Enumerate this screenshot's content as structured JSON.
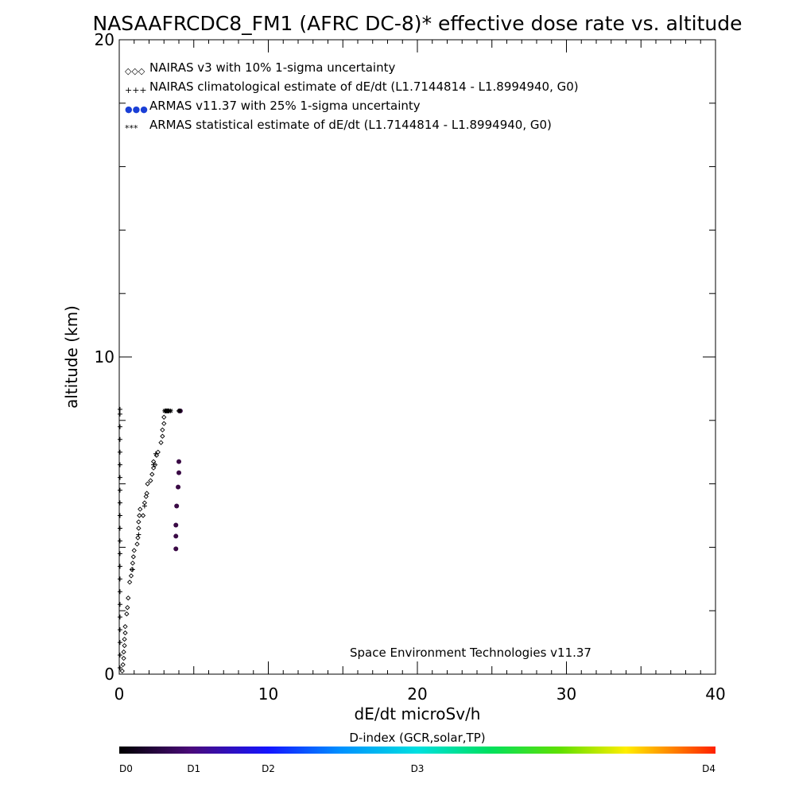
{
  "chart_data": {
    "type": "scatter",
    "title": "NASAAFRCDC8_FM1 (AFRC DC-8)* effective dose rate vs. altitude",
    "xlabel": "dE/dt microSv/h",
    "ylabel": "altitude (km)",
    "xlim": [
      0,
      40
    ],
    "ylim": [
      0,
      20
    ],
    "x_ticks": [
      "0",
      "10",
      "20",
      "30",
      "40"
    ],
    "y_ticks": [
      "0",
      "10",
      "20"
    ],
    "legend_position": "top-left",
    "annotation": "Space Environment Technologies v11.37",
    "legend": [
      {
        "symbol": "◇◇◇",
        "label": "NAIRAS v3 with 10% 1-sigma uncertainty",
        "color": "#000000"
      },
      {
        "symbol": "+++",
        "label": "NAIRAS climatological estimate of dE/dt (L1.7144814 - L1.8994940, G0)",
        "color": "#000000"
      },
      {
        "symbol": "●●●",
        "label": "ARMAS v11.37 with 25% 1-sigma uncertainty",
        "color": "#1a3fd6"
      },
      {
        "symbol": "***",
        "label": "ARMAS statistical estimate of dE/dt (L1.7144814 - L1.8994940, G0)",
        "color": "#000000"
      }
    ],
    "series": [
      {
        "name": "NAIRAS v3 with 10% 1-sigma uncertainty",
        "marker": "diamond",
        "color": "#000000",
        "points": [
          [
            0.2,
            0.1
          ],
          [
            0.25,
            0.3
          ],
          [
            0.3,
            0.5
          ],
          [
            0.3,
            0.7
          ],
          [
            0.35,
            0.9
          ],
          [
            0.35,
            1.1
          ],
          [
            0.4,
            1.3
          ],
          [
            0.4,
            1.5
          ],
          [
            0.5,
            1.9
          ],
          [
            0.55,
            2.1
          ],
          [
            0.6,
            2.4
          ],
          [
            0.7,
            2.9
          ],
          [
            0.8,
            3.1
          ],
          [
            0.85,
            3.3
          ],
          [
            0.9,
            3.5
          ],
          [
            0.95,
            3.7
          ],
          [
            1.0,
            3.9
          ],
          [
            1.2,
            4.1
          ],
          [
            1.25,
            4.3
          ],
          [
            1.3,
            4.6
          ],
          [
            1.3,
            4.8
          ],
          [
            1.35,
            5.0
          ],
          [
            1.4,
            5.2
          ],
          [
            1.6,
            5.0
          ],
          [
            1.7,
            5.4
          ],
          [
            1.8,
            5.6
          ],
          [
            1.85,
            5.7
          ],
          [
            1.9,
            6.0
          ],
          [
            2.1,
            6.1
          ],
          [
            2.2,
            6.3
          ],
          [
            2.3,
            6.5
          ],
          [
            2.3,
            6.7
          ],
          [
            2.4,
            6.6
          ],
          [
            2.5,
            6.9
          ],
          [
            2.6,
            7.0
          ],
          [
            2.8,
            7.3
          ],
          [
            2.9,
            7.5
          ],
          [
            2.9,
            7.7
          ],
          [
            3.0,
            7.9
          ],
          [
            3.0,
            8.1
          ],
          [
            3.2,
            8.3
          ],
          [
            4.0,
            8.3
          ]
        ]
      },
      {
        "name": "NAIRAS climatological estimate of dE/dt (L1.7144814 - L1.8994940, G0)",
        "marker": "plus",
        "color": "#000000",
        "points": [
          [
            0.05,
            0.2
          ],
          [
            0.05,
            0.6
          ],
          [
            0.05,
            1.0
          ],
          [
            0.05,
            1.4
          ],
          [
            0.05,
            1.8
          ],
          [
            0.05,
            2.2
          ],
          [
            0.05,
            2.6
          ],
          [
            0.05,
            3.0
          ],
          [
            0.05,
            3.4
          ],
          [
            0.05,
            3.8
          ],
          [
            0.05,
            4.2
          ],
          [
            0.05,
            4.6
          ],
          [
            0.05,
            5.0
          ],
          [
            0.05,
            5.4
          ],
          [
            0.05,
            5.8
          ],
          [
            0.05,
            6.2
          ],
          [
            0.05,
            6.6
          ],
          [
            0.05,
            7.0
          ],
          [
            0.05,
            7.4
          ],
          [
            0.05,
            7.8
          ],
          [
            0.05,
            8.2
          ],
          [
            0.05,
            8.35
          ],
          [
            0.9,
            3.3
          ],
          [
            1.3,
            4.4
          ],
          [
            1.7,
            5.3
          ],
          [
            2.3,
            6.6
          ],
          [
            2.45,
            6.95
          ],
          [
            3.1,
            8.3
          ],
          [
            3.3,
            8.3
          ]
        ]
      },
      {
        "name": "ARMAS v11.37 with 25% 1-sigma uncertainty",
        "marker": "dot",
        "color": "#3a0a45",
        "points": [
          [
            3.8,
            3.95
          ],
          [
            3.8,
            4.35
          ],
          [
            3.8,
            4.7
          ],
          [
            3.85,
            5.3
          ],
          [
            3.95,
            5.9
          ],
          [
            4.0,
            6.35
          ],
          [
            4.0,
            6.7
          ],
          [
            4.1,
            8.3
          ]
        ]
      },
      {
        "name": "ARMAS statistical estimate of dE/dt (L1.7144814 - L1.8994940, G0)",
        "marker": "asterisk",
        "color": "#000000",
        "points": [
          [
            3.05,
            8.3
          ],
          [
            3.15,
            8.3
          ],
          [
            3.25,
            8.3
          ],
          [
            3.35,
            8.3
          ],
          [
            3.45,
            8.3
          ],
          [
            4.05,
            8.3
          ]
        ]
      }
    ]
  },
  "colorbar": {
    "title": "D-index (GCR,solar,TP)",
    "labels": [
      {
        "text": "D0",
        "position": 0.0
      },
      {
        "text": "D1",
        "position": 0.125
      },
      {
        "text": "D2",
        "position": 0.25
      },
      {
        "text": "D3",
        "position": 0.5
      },
      {
        "text": "D4",
        "position": 1.0
      }
    ]
  }
}
